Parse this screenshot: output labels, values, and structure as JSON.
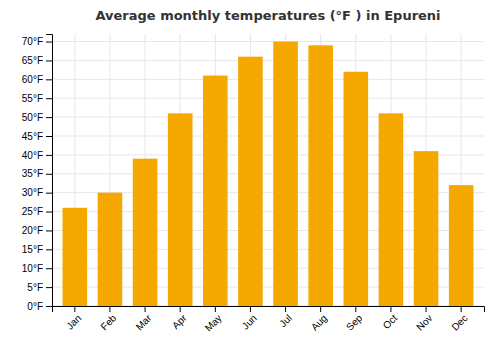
{
  "chart_data": {
    "type": "bar",
    "title": "Average monthly temperatures (°F ) in Epureni",
    "categories": [
      "Jan",
      "Feb",
      "Mar",
      "Apr",
      "May",
      "Jun",
      "Jul",
      "Aug",
      "Sep",
      "Oct",
      "Nov",
      "Dec"
    ],
    "values": [
      26,
      30,
      39,
      51,
      61,
      66,
      70,
      69,
      62,
      51,
      41,
      32
    ],
    "color": "#F5A800",
    "ylim": [
      0,
      72
    ],
    "yticks": [
      {
        "value": 0,
        "label": "0°F"
      },
      {
        "value": 5,
        "label": "5°F"
      },
      {
        "value": 10,
        "label": "10°F"
      },
      {
        "value": 15,
        "label": "15°F"
      },
      {
        "value": 20,
        "label": "20°F"
      },
      {
        "value": 25,
        "label": "25°F"
      },
      {
        "value": 30,
        "label": "30°F"
      },
      {
        "value": 35,
        "label": "35°F"
      },
      {
        "value": 40,
        "label": "40°F"
      },
      {
        "value": 45,
        "label": "45°F"
      },
      {
        "value": 50,
        "label": "50°F"
      },
      {
        "value": 55,
        "label": "55°F"
      },
      {
        "value": 60,
        "label": "60°F"
      },
      {
        "value": 65,
        "label": "65°F"
      },
      {
        "value": 70,
        "label": "70°F"
      }
    ],
    "grid": true
  }
}
